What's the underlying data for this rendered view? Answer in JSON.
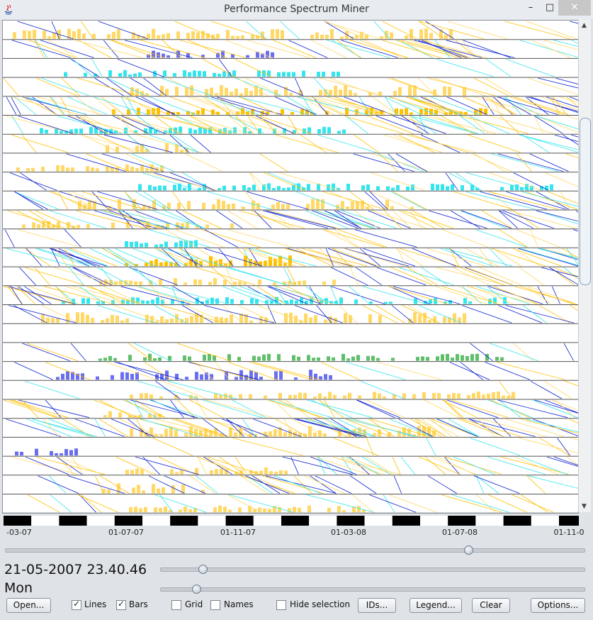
{
  "window": {
    "title": "Performance Spectrum Miner",
    "controls": {
      "minimize": "–",
      "maximize": "□",
      "close": "✕"
    }
  },
  "timeline": {
    "tick_labels": [
      "-03-07",
      "01-07-07",
      "01-11-07",
      "01-03-08",
      "01-07-08",
      "01-11-0"
    ]
  },
  "status": {
    "datetime": "21-05-2007 23.40.46",
    "weekday": "Mon"
  },
  "sliders": {
    "timeline_position": 0.8,
    "zoom_level": 0.1,
    "speed_level": 0.085
  },
  "toolbar": {
    "open_label": "Open...",
    "lines_label": "Lines",
    "lines_checked": true,
    "bars_label": "Bars",
    "bars_checked": true,
    "grid_label": "Grid",
    "grid_checked": false,
    "names_label": "Names",
    "names_checked": false,
    "hide_selection_label": "Hide selection",
    "hide_selection_checked": false,
    "ids_label": "IDs...",
    "legend_label": "Legend...",
    "clear_label": "Clear",
    "options_label": "Options..."
  },
  "colors": {
    "yellow": "#ffd866",
    "orange": "#ffc000",
    "cyan": "#33e5ee",
    "blue": "#0a1fd0",
    "violet": "#6a6ff0",
    "green": "#5fbf6a"
  }
}
